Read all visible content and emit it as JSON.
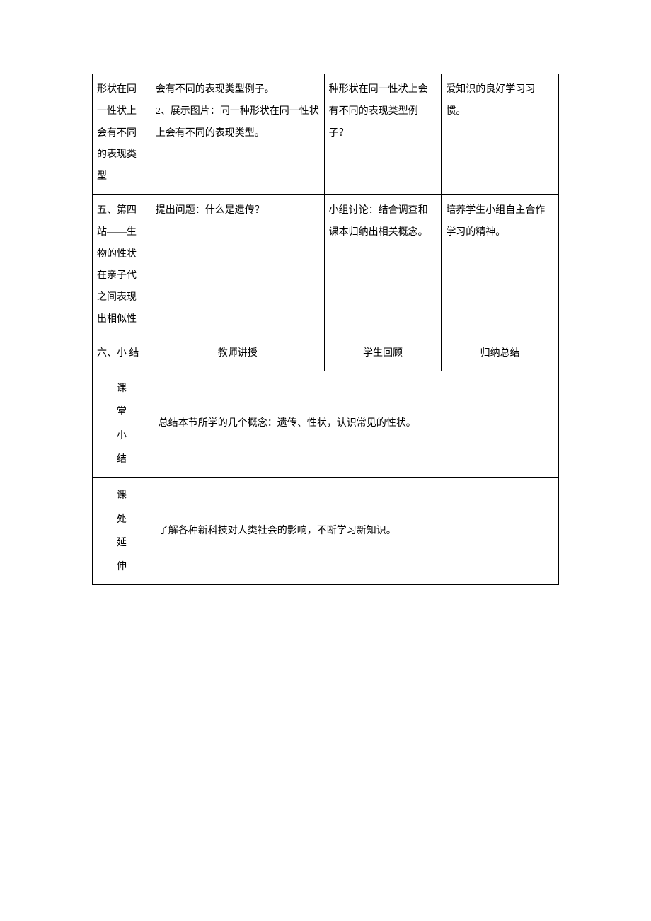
{
  "table": {
    "border_color": "#000000",
    "background_color": "#ffffff",
    "text_color": "#000000",
    "font_family": "SimSun",
    "font_size": 14,
    "line_height": 2.2,
    "columns": {
      "col1_width": "11.5%",
      "col2_width": "34%",
      "col3_width": "23%",
      "col4_width": "23%"
    },
    "rows": [
      {
        "cells": [
          {
            "text": "形状在同一性状上会有不同的表现类型",
            "align": "left",
            "no_top": true
          },
          {
            "text": "会有不同的表现类型例子。\n2、展示图片：同一种形状在同一性状上会有不同的表现类型。",
            "align": "left",
            "no_top": true,
            "indent_first": true
          },
          {
            "text": "种形状在同一性状上会有不同的表现类型例子？",
            "align": "left",
            "no_top": true,
            "indent_first": true
          },
          {
            "text": "爱知识的良好学习习惯。",
            "align": "left",
            "no_top": true
          }
        ]
      },
      {
        "cells": [
          {
            "text": "五、第四站——生物的性状在亲子代之间表现出相似性",
            "align": "left"
          },
          {
            "text": "提出问题：什么是遗传？",
            "align": "left"
          },
          {
            "text": "小组讨论：结合调查和课本归纳出相关概念。",
            "align": "left"
          },
          {
            "text": "培养学生小组自主合作学习的精神。",
            "align": "left",
            "indent_first": true
          }
        ]
      },
      {
        "cells": [
          {
            "text": "六、小 结",
            "align": "left"
          },
          {
            "text": "教师讲授",
            "align": "center"
          },
          {
            "text": "学生回顾",
            "align": "center"
          },
          {
            "text": "归纳总结",
            "align": "center"
          }
        ]
      },
      {
        "type": "merged",
        "label": "课堂小结",
        "content": "总结本节所学的几个概念：遗传、性状，认识常见的性状。"
      },
      {
        "type": "merged",
        "label": "课处延伸",
        "content": "了解各种新科技对人类社会的影响，不断学习新知识。"
      }
    ]
  }
}
